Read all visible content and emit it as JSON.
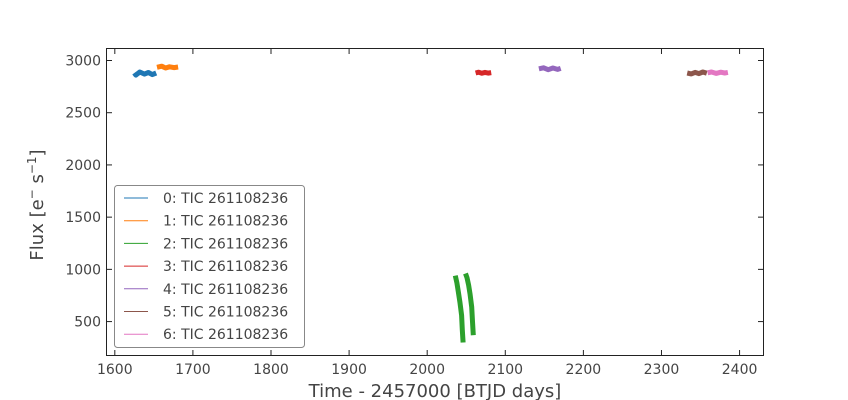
{
  "chart_data": {
    "type": "line",
    "title": "",
    "xlabel": "Time - 2457000 [BTJD days]",
    "ylabel_main": "Flux [e",
    "ylabel_sup1": "−",
    "ylabel_mid": " s",
    "ylabel_sup2": "−1",
    "ylabel_end": "]",
    "xlim": [
      1590,
      2430
    ],
    "ylim": [
      180,
      3110
    ],
    "xticks": [
      1600,
      1700,
      1800,
      1900,
      2000,
      2100,
      2200,
      2300,
      2400
    ],
    "yticks": [
      500,
      1000,
      1500,
      2000,
      2500,
      3000
    ],
    "grid": false,
    "legend_position": "lower-left",
    "series": [
      {
        "name": "0: TIC 261108236",
        "color": "#1f77b4",
        "segments": [
          {
            "x": [
              1625,
              1627,
              1632,
              1638,
              1643,
              1648,
              1653
            ],
            "y": [
              2880,
              2860,
              2890,
              2870,
              2885,
              2865,
              2880
            ]
          }
        ]
      },
      {
        "name": "1: TIC 261108236",
        "color": "#ff7f0e",
        "segments": [
          {
            "x": [
              1654,
              1660,
              1665,
              1670,
              1676,
              1681
            ],
            "y": [
              2935,
              2945,
              2928,
              2940,
              2932,
              2938
            ]
          }
        ]
      },
      {
        "name": "2: TIC 261108236",
        "color": "#2ca02c",
        "segments": [
          {
            "x": [
              2036,
              2038,
              2040,
              2042,
              2044,
              2045,
              2046
            ],
            "y": [
              940,
              870,
              780,
              680,
              560,
              420,
              300
            ]
          },
          {
            "x": [
              2049,
              2051,
              2053,
              2055,
              2057,
              2058,
              2059
            ],
            "y": [
              960,
              920,
              850,
              760,
              640,
              500,
              370
            ]
          }
        ]
      },
      {
        "name": "3: TIC 261108236",
        "color": "#d62728",
        "segments": [
          {
            "x": [
              2062,
              2066,
              2070,
              2074,
              2078,
              2082
            ],
            "y": [
              2880,
              2888,
              2878,
              2886,
              2879,
              2884
            ]
          }
        ]
      },
      {
        "name": "4: TIC 261108236",
        "color": "#9467bd",
        "segments": [
          {
            "x": [
              2143,
              2149,
              2155,
              2161,
              2167,
              2171
            ],
            "y": [
              2920,
              2930,
              2912,
              2928,
              2915,
              2924
            ]
          }
        ]
      },
      {
        "name": "5: TIC 261108236",
        "color": "#8c564b",
        "segments": [
          {
            "x": [
              2333,
              2338,
              2343,
              2348,
              2353,
              2358
            ],
            "y": [
              2880,
              2872,
              2886,
              2874,
              2890,
              2878
            ]
          }
        ]
      },
      {
        "name": "6: TIC 261108236",
        "color": "#e377c2",
        "segments": [
          {
            "x": [
              2359,
              2364,
              2370,
              2376,
              2381,
              2385
            ],
            "y": [
              2882,
              2890,
              2876,
              2888,
              2880,
              2886
            ]
          }
        ]
      }
    ]
  }
}
